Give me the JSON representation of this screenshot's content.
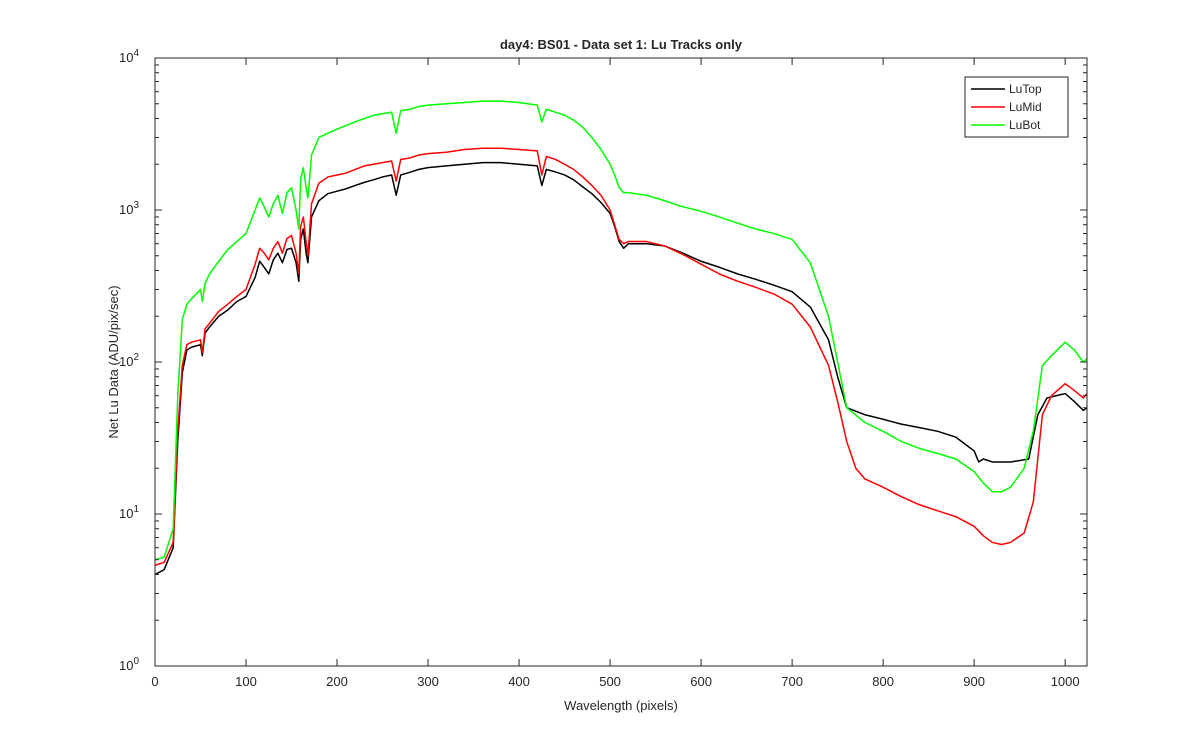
{
  "chart_data": {
    "type": "line",
    "title": "day4: BS01 - Data set 1: Lu Tracks only",
    "xlabel": "Wavelength (pixels)",
    "ylabel": "Net Lu Data (ADU/pix/sec)",
    "xlim": [
      0,
      1024
    ],
    "ylim": [
      1,
      10000
    ],
    "yscale": "log",
    "grid": false,
    "legend_position": "top-right",
    "x_ticks": [
      "0",
      "100",
      "200",
      "300",
      "400",
      "500",
      "600",
      "700",
      "800",
      "900",
      "1000"
    ],
    "x_tick_values": [
      0,
      100,
      200,
      300,
      400,
      500,
      600,
      700,
      800,
      900,
      1000
    ],
    "y_ticks": [
      {
        "value": 1,
        "base": "10",
        "exp": "0"
      },
      {
        "value": 10,
        "base": "10",
        "exp": "1"
      },
      {
        "value": 100,
        "base": "10",
        "exp": "2"
      },
      {
        "value": 1000,
        "base": "10",
        "exp": "3"
      },
      {
        "value": 10000,
        "base": "10",
        "exp": "4"
      }
    ],
    "series": [
      {
        "name": "LuTop",
        "color": "#000000",
        "points": [
          [
            0,
            4.0
          ],
          [
            10,
            4.3
          ],
          [
            20,
            6
          ],
          [
            25,
            30
          ],
          [
            30,
            85
          ],
          [
            35,
            120
          ],
          [
            40,
            125
          ],
          [
            50,
            130
          ],
          [
            52,
            110
          ],
          [
            55,
            155
          ],
          [
            60,
            170
          ],
          [
            70,
            200
          ],
          [
            80,
            220
          ],
          [
            90,
            250
          ],
          [
            100,
            270
          ],
          [
            110,
            360
          ],
          [
            115,
            460
          ],
          [
            120,
            420
          ],
          [
            125,
            380
          ],
          [
            130,
            470
          ],
          [
            135,
            520
          ],
          [
            140,
            450
          ],
          [
            145,
            550
          ],
          [
            150,
            560
          ],
          [
            155,
            450
          ],
          [
            158,
            340
          ],
          [
            160,
            640
          ],
          [
            163,
            750
          ],
          [
            166,
            520
          ],
          [
            168,
            450
          ],
          [
            172,
            900
          ],
          [
            180,
            1150
          ],
          [
            190,
            1280
          ],
          [
            200,
            1330
          ],
          [
            210,
            1380
          ],
          [
            220,
            1450
          ],
          [
            230,
            1520
          ],
          [
            240,
            1580
          ],
          [
            250,
            1650
          ],
          [
            260,
            1700
          ],
          [
            265,
            1250
          ],
          [
            270,
            1700
          ],
          [
            280,
            1770
          ],
          [
            290,
            1850
          ],
          [
            300,
            1900
          ],
          [
            320,
            1950
          ],
          [
            340,
            2000
          ],
          [
            360,
            2050
          ],
          [
            380,
            2050
          ],
          [
            400,
            2000
          ],
          [
            420,
            1950
          ],
          [
            425,
            1450
          ],
          [
            430,
            1850
          ],
          [
            440,
            1780
          ],
          [
            450,
            1700
          ],
          [
            460,
            1580
          ],
          [
            470,
            1420
          ],
          [
            480,
            1280
          ],
          [
            490,
            1120
          ],
          [
            500,
            950
          ],
          [
            505,
            780
          ],
          [
            510,
            620
          ],
          [
            515,
            560
          ],
          [
            520,
            600
          ],
          [
            540,
            600
          ],
          [
            560,
            580
          ],
          [
            580,
            520
          ],
          [
            600,
            460
          ],
          [
            620,
            420
          ],
          [
            640,
            380
          ],
          [
            660,
            350
          ],
          [
            680,
            320
          ],
          [
            700,
            290
          ],
          [
            720,
            230
          ],
          [
            740,
            140
          ],
          [
            750,
            80
          ],
          [
            760,
            50
          ],
          [
            780,
            45
          ],
          [
            800,
            42
          ],
          [
            820,
            39
          ],
          [
            840,
            37
          ],
          [
            860,
            35
          ],
          [
            880,
            32
          ],
          [
            900,
            26
          ],
          [
            905,
            22
          ],
          [
            910,
            23
          ],
          [
            920,
            22
          ],
          [
            940,
            22
          ],
          [
            960,
            23
          ],
          [
            970,
            45
          ],
          [
            980,
            58
          ],
          [
            990,
            60
          ],
          [
            1000,
            62
          ],
          [
            1010,
            55
          ],
          [
            1020,
            48
          ],
          [
            1024,
            50
          ]
        ]
      },
      {
        "name": "LuMid",
        "color": "#ff0000",
        "points": [
          [
            0,
            4.6
          ],
          [
            10,
            4.8
          ],
          [
            20,
            6.5
          ],
          [
            25,
            35
          ],
          [
            30,
            95
          ],
          [
            35,
            130
          ],
          [
            40,
            135
          ],
          [
            50,
            140
          ],
          [
            52,
            115
          ],
          [
            55,
            165
          ],
          [
            60,
            180
          ],
          [
            70,
            215
          ],
          [
            80,
            240
          ],
          [
            90,
            270
          ],
          [
            100,
            300
          ],
          [
            110,
            440
          ],
          [
            115,
            560
          ],
          [
            120,
            520
          ],
          [
            125,
            470
          ],
          [
            130,
            560
          ],
          [
            135,
            620
          ],
          [
            140,
            520
          ],
          [
            145,
            650
          ],
          [
            150,
            680
          ],
          [
            155,
            520
          ],
          [
            158,
            380
          ],
          [
            160,
            780
          ],
          [
            163,
            900
          ],
          [
            166,
            620
          ],
          [
            168,
            500
          ],
          [
            172,
            1100
          ],
          [
            180,
            1500
          ],
          [
            190,
            1650
          ],
          [
            200,
            1700
          ],
          [
            210,
            1750
          ],
          [
            220,
            1850
          ],
          [
            230,
            1950
          ],
          [
            240,
            2000
          ],
          [
            250,
            2050
          ],
          [
            260,
            2100
          ],
          [
            265,
            1550
          ],
          [
            270,
            2150
          ],
          [
            280,
            2200
          ],
          [
            290,
            2300
          ],
          [
            300,
            2350
          ],
          [
            320,
            2400
          ],
          [
            340,
            2500
          ],
          [
            360,
            2550
          ],
          [
            380,
            2550
          ],
          [
            400,
            2500
          ],
          [
            420,
            2450
          ],
          [
            425,
            1700
          ],
          [
            430,
            2250
          ],
          [
            440,
            2150
          ],
          [
            450,
            2000
          ],
          [
            460,
            1850
          ],
          [
            470,
            1650
          ],
          [
            480,
            1450
          ],
          [
            490,
            1250
          ],
          [
            500,
            1000
          ],
          [
            505,
            800
          ],
          [
            510,
            640
          ],
          [
            515,
            600
          ],
          [
            520,
            620
          ],
          [
            540,
            620
          ],
          [
            560,
            580
          ],
          [
            580,
            510
          ],
          [
            600,
            440
          ],
          [
            620,
            380
          ],
          [
            640,
            340
          ],
          [
            660,
            310
          ],
          [
            680,
            280
          ],
          [
            700,
            240
          ],
          [
            720,
            170
          ],
          [
            740,
            95
          ],
          [
            750,
            55
          ],
          [
            760,
            30
          ],
          [
            770,
            20
          ],
          [
            780,
            17
          ],
          [
            800,
            15
          ],
          [
            820,
            13
          ],
          [
            840,
            11.5
          ],
          [
            860,
            10.5
          ],
          [
            880,
            9.6
          ],
          [
            900,
            8.3
          ],
          [
            910,
            7.2
          ],
          [
            920,
            6.5
          ],
          [
            930,
            6.3
          ],
          [
            940,
            6.5
          ],
          [
            955,
            7.5
          ],
          [
            965,
            12
          ],
          [
            975,
            45
          ],
          [
            985,
            60
          ],
          [
            1000,
            72
          ],
          [
            1010,
            65
          ],
          [
            1020,
            58
          ],
          [
            1024,
            62
          ]
        ]
      },
      {
        "name": "LuBot",
        "color": "#00ff00",
        "points": [
          [
            0,
            5.0
          ],
          [
            10,
            5.2
          ],
          [
            20,
            8
          ],
          [
            25,
            60
          ],
          [
            30,
            190
          ],
          [
            35,
            240
          ],
          [
            40,
            260
          ],
          [
            50,
            300
          ],
          [
            52,
            250
          ],
          [
            55,
            330
          ],
          [
            60,
            380
          ],
          [
            70,
            460
          ],
          [
            80,
            550
          ],
          [
            90,
            620
          ],
          [
            100,
            700
          ],
          [
            110,
            1000
          ],
          [
            115,
            1200
          ],
          [
            120,
            1050
          ],
          [
            125,
            900
          ],
          [
            130,
            1100
          ],
          [
            135,
            1250
          ],
          [
            140,
            950
          ],
          [
            145,
            1300
          ],
          [
            150,
            1400
          ],
          [
            155,
            1000
          ],
          [
            158,
            750
          ],
          [
            160,
            1600
          ],
          [
            163,
            1900
          ],
          [
            166,
            1400
          ],
          [
            168,
            1200
          ],
          [
            172,
            2300
          ],
          [
            180,
            3000
          ],
          [
            190,
            3200
          ],
          [
            200,
            3400
          ],
          [
            210,
            3600
          ],
          [
            220,
            3800
          ],
          [
            230,
            4000
          ],
          [
            240,
            4200
          ],
          [
            250,
            4300
          ],
          [
            260,
            4400
          ],
          [
            265,
            3200
          ],
          [
            270,
            4500
          ],
          [
            280,
            4600
          ],
          [
            290,
            4800
          ],
          [
            300,
            4900
          ],
          [
            320,
            5000
          ],
          [
            340,
            5100
          ],
          [
            360,
            5200
          ],
          [
            380,
            5200
          ],
          [
            400,
            5100
          ],
          [
            420,
            4900
          ],
          [
            425,
            3800
          ],
          [
            430,
            4600
          ],
          [
            440,
            4400
          ],
          [
            450,
            4200
          ],
          [
            460,
            3900
          ],
          [
            470,
            3500
          ],
          [
            480,
            3000
          ],
          [
            490,
            2500
          ],
          [
            500,
            2000
          ],
          [
            505,
            1700
          ],
          [
            510,
            1400
          ],
          [
            515,
            1300
          ],
          [
            520,
            1300
          ],
          [
            540,
            1250
          ],
          [
            560,
            1150
          ],
          [
            580,
            1050
          ],
          [
            600,
            980
          ],
          [
            620,
            900
          ],
          [
            640,
            820
          ],
          [
            660,
            750
          ],
          [
            680,
            700
          ],
          [
            700,
            640
          ],
          [
            720,
            450
          ],
          [
            740,
            200
          ],
          [
            750,
            100
          ],
          [
            760,
            50
          ],
          [
            780,
            40
          ],
          [
            800,
            35
          ],
          [
            820,
            30
          ],
          [
            840,
            27
          ],
          [
            860,
            25
          ],
          [
            880,
            23
          ],
          [
            900,
            19
          ],
          [
            910,
            16
          ],
          [
            920,
            14
          ],
          [
            930,
            14
          ],
          [
            940,
            15
          ],
          [
            955,
            20
          ],
          [
            965,
            35
          ],
          [
            975,
            95
          ],
          [
            985,
            110
          ],
          [
            1000,
            135
          ],
          [
            1010,
            120
          ],
          [
            1020,
            100
          ],
          [
            1024,
            105
          ]
        ]
      }
    ]
  }
}
